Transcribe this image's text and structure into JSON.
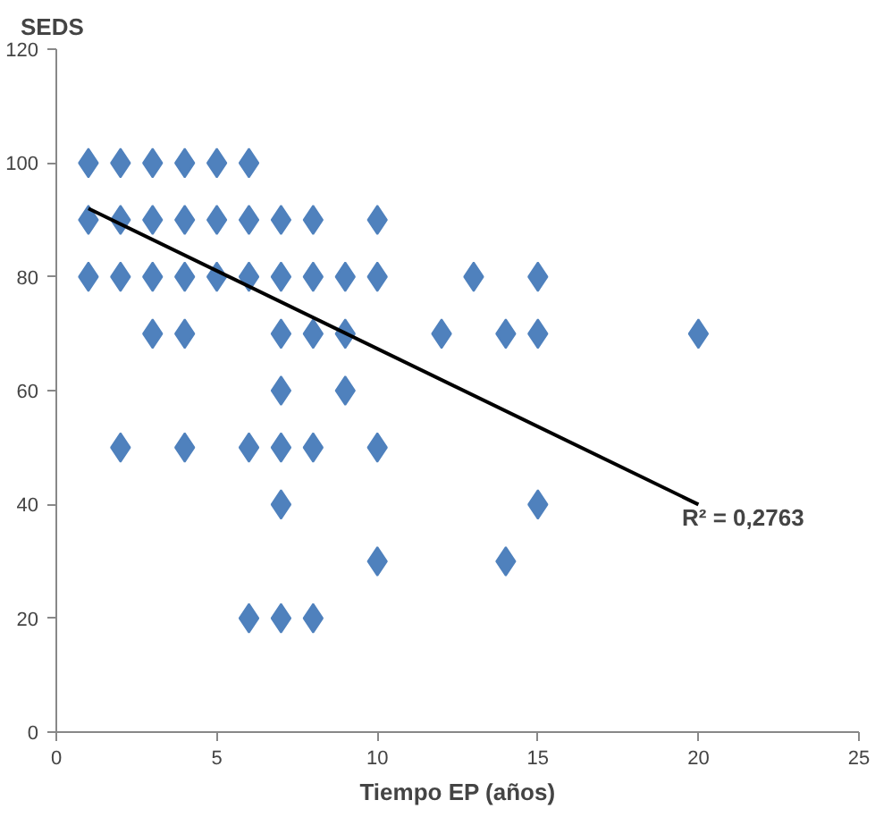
{
  "chart_data": {
    "type": "scatter",
    "xlabel": "Tiempo EP (años)",
    "ylabel": "SEDS",
    "xlim": [
      0,
      25
    ],
    "xticks": [
      0,
      5,
      10,
      15,
      20,
      25
    ],
    "ylim": [
      0,
      120
    ],
    "yticks": [
      0,
      20,
      40,
      60,
      80,
      100,
      120
    ],
    "grid": false,
    "series": [
      {
        "color": "#4f81bd",
        "marker": "diamond",
        "x": [
          1,
          2,
          3,
          4,
          5,
          6,
          1,
          2,
          3,
          4,
          5,
          6,
          7,
          8,
          10,
          1,
          2,
          3,
          4,
          5,
          6,
          7,
          8,
          9,
          10,
          13,
          15,
          3,
          4,
          7,
          8,
          9,
          12,
          14,
          15,
          20,
          7,
          9,
          2,
          4,
          6,
          7,
          8,
          10,
          7,
          15,
          10,
          14,
          6,
          7,
          8
        ],
        "values": [
          100,
          100,
          100,
          100,
          100,
          100,
          90,
          90,
          90,
          90,
          90,
          90,
          90,
          90,
          90,
          80,
          80,
          80,
          80,
          80,
          80,
          80,
          80,
          80,
          80,
          80,
          80,
          70,
          70,
          70,
          70,
          70,
          70,
          70,
          70,
          70,
          60,
          60,
          50,
          50,
          50,
          50,
          50,
          50,
          40,
          40,
          30,
          30,
          20,
          20,
          20
        ]
      },
      {
        "type": "line",
        "color": "#000000",
        "x": [
          1,
          20
        ],
        "values": [
          92,
          40
        ]
      }
    ],
    "annotations": [
      "R² = 0,2763"
    ]
  }
}
